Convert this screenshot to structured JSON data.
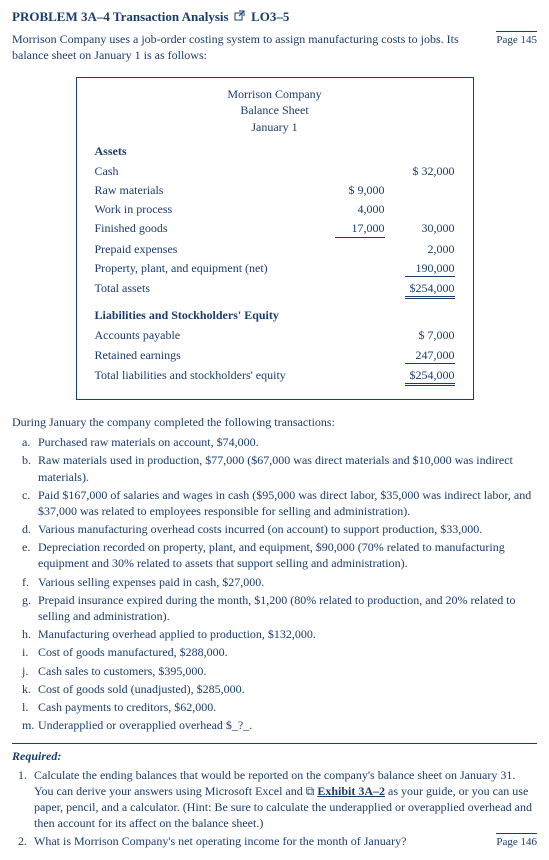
{
  "header": {
    "problem_label": "PROBLEM 3A–4 Transaction Analysis",
    "lo_label": "LO3–5",
    "intro": "Morrison Company uses a job-order costing system to assign manufacturing costs to jobs. Its balance sheet on January 1 is as follows:",
    "page_ref_top": "Page 145"
  },
  "balance_sheet": {
    "company": "Morrison Company",
    "title": "Balance Sheet",
    "date": "January 1",
    "assets_header": "Assets",
    "rows_assets": [
      {
        "label": "Cash",
        "col1": "",
        "col2": "$  32,000"
      },
      {
        "label": "Raw materials",
        "col1": "$ 9,000",
        "col2": ""
      },
      {
        "label": "Work in process",
        "col1": "4,000",
        "col2": ""
      },
      {
        "label": "Finished goods",
        "col1": "17,000",
        "col2": "30,000",
        "u1": true
      },
      {
        "label": "Prepaid expenses",
        "col1": "",
        "col2": "2,000"
      },
      {
        "label": "Property, plant, and equipment (net)",
        "col1": "",
        "col2": "190,000",
        "u2": true
      },
      {
        "label": "Total assets",
        "col1": "",
        "col2": "$254,000",
        "d2": true
      }
    ],
    "liab_header": "Liabilities and Stockholders' Equity",
    "rows_liab": [
      {
        "label": "Accounts payable",
        "col1": "",
        "col2": "$    7,000"
      },
      {
        "label": "Retained earnings",
        "col1": "",
        "col2": "247,000",
        "u2": true
      },
      {
        "label": "Total liabilities and stockholders' equity",
        "col1": "",
        "col2": "$254,000",
        "d2": true
      }
    ]
  },
  "transactions": {
    "intro": "During January the company completed the following transactions:",
    "items": [
      {
        "l": "a.",
        "t": "Purchased raw materials on account, $74,000."
      },
      {
        "l": "b.",
        "t": "Raw materials used in production, $77,000 ($67,000 was direct materials and $10,000 was indirect materials)."
      },
      {
        "l": "c.",
        "t": "Paid $167,000 of salaries and wages in cash ($95,000 was direct labor, $35,000 was indirect labor, and $37,000 was related to employees responsible for selling and administration)."
      },
      {
        "l": "d.",
        "t": "Various manufacturing overhead costs incurred (on account) to support production, $33,000."
      },
      {
        "l": "e.",
        "t": "Depreciation recorded on property, plant, and equipment, $90,000 (70% related to manufacturing equipment and 30% related to assets that support selling and administration)."
      },
      {
        "l": "f.",
        "t": "Various selling expenses paid in cash, $27,000."
      },
      {
        "l": "g.",
        "t": "Prepaid insurance expired during the month, $1,200 (80% related to production, and 20% related to selling and administration)."
      },
      {
        "l": "h.",
        "t": "Manufacturing overhead applied to production, $132,000."
      },
      {
        "l": "i.",
        "t": "Cost of goods manufactured, $288,000."
      },
      {
        "l": "j.",
        "t": "Cash sales to customers, $395,000."
      },
      {
        "l": "k.",
        "t": "Cost of goods sold (unadjusted), $285,000."
      },
      {
        "l": "l.",
        "t": "Cash payments to creditors, $62,000."
      },
      {
        "l": "m.",
        "t": "Underapplied or overapplied overhead $_?_."
      }
    ]
  },
  "required": {
    "header": "Required:",
    "items": [
      {
        "n": "1.",
        "pre": "Calculate the ending balances that would be reported on the company's balance sheet on January 31. You can derive your answers using Microsoft Excel and ",
        "link_icon": "⧉",
        "link": "Exhibit 3A–2",
        "post": " as your guide, or you can use paper, pencil, and a calculator. (Hint: Be sure to calculate the underapplied or overapplied overhead and then account for its affect on the balance sheet.)"
      },
      {
        "n": "2.",
        "pre": "What is Morrison Company's net operating income for the month of January?",
        "link": "",
        "post": ""
      }
    ],
    "page_ref_bottom": "Page 146"
  }
}
